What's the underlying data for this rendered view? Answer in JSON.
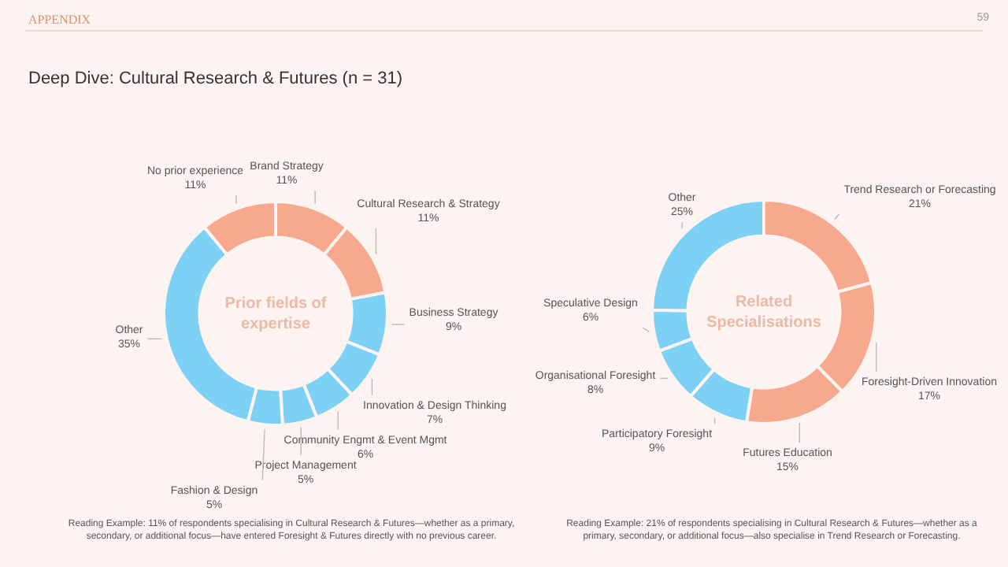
{
  "chart_data": [
    {
      "type": "donut",
      "title": "Prior fields of expertise",
      "categories": [
        "Brand Strategy",
        "Cultural Research & Strategy",
        "Business Strategy",
        "Innovation & Design Thinking",
        "Community Engmt & Event Mgmt",
        "Project Management",
        "Fashion & Design",
        "Other",
        "No prior experience"
      ],
      "values": [
        11,
        11,
        9,
        7,
        6,
        5,
        5,
        35,
        11
      ],
      "value_labels": [
        "11%",
        "11%",
        "9%",
        "7%",
        "6%",
        "5%",
        "5%",
        "35%",
        "11%"
      ],
      "colors": [
        "#f7a98e",
        "#f7a98e",
        "#7dd1f5",
        "#7dd1f5",
        "#7dd1f5",
        "#7dd1f5",
        "#7dd1f5",
        "#7dd1f5",
        "#f7a98e"
      ],
      "legend": false,
      "annotations": [
        "APPENDIX",
        "59",
        "Deep Dive: Cultural Research & Futures (n = 31)",
        "Reading Example: 11% of respondents specialising in Cultural Research & Futures—whether as a primary, secondary, or additional focus—have entered Foresight & Futures directly with no previous career."
      ]
    },
    {
      "type": "donut",
      "title": "Related Specialisations",
      "categories": [
        "Trend Research or Forecasting",
        "Foresight-Driven Innovation",
        "Futures Education",
        "Participatory Foresight",
        "Organisational Foresight",
        "Speculative Design",
        "Other"
      ],
      "values": [
        21,
        17,
        15,
        9,
        8,
        6,
        25
      ],
      "value_labels": [
        "21%",
        "17%",
        "15%",
        "9%",
        "8%",
        "6%",
        "25%"
      ],
      "colors": [
        "#f7a98e",
        "#f7a98e",
        "#f7a98e",
        "#7dd1f5",
        "#7dd1f5",
        "#7dd1f5",
        "#7dd1f5"
      ],
      "legend": false,
      "annotations": [
        "Reading Example: 21% of respondents specialising in Cultural Research & Futures—whether as a primary, secondary, or additional focus—also specialise in Trend Research or Forecasting."
      ]
    }
  ]
}
